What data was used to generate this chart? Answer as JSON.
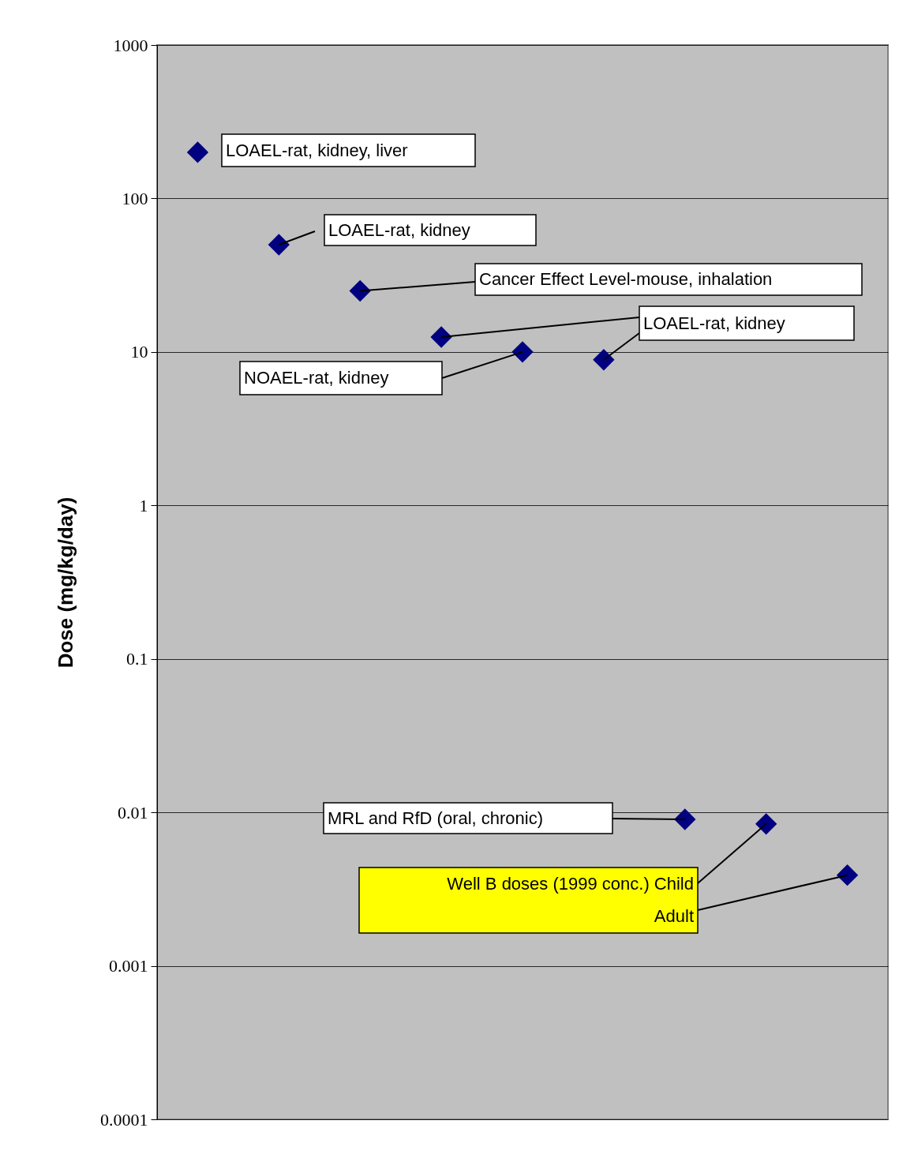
{
  "chart_data": {
    "type": "scatter",
    "ylabel": "Dose (mg/kg/day)",
    "categories": [
      null,
      null,
      null,
      null,
      null,
      null,
      null,
      null,
      null
    ],
    "series": [
      {
        "color": "#000080",
        "values": [
          200,
          50,
          25,
          12.5,
          10,
          8.9,
          0.009,
          0.0084,
          0.0039
        ]
      }
    ],
    "log": "y",
    "ylim": [
      0.0001,
      1000
    ],
    "yticks": [
      0.0001,
      0.001,
      0.01,
      0.1,
      1,
      10,
      100,
      1000
    ],
    "grid": "y",
    "marker": "diamond",
    "tick_labels": "y",
    "annotations": [
      "LOAEL-rat, kidney, liver",
      "LOAEL-rat, kidney",
      "Cancer Effect Level-mouse, inhalation",
      "LOAEL-rat, kidney",
      "NOAEL-rat, kidney",
      "MRL and RfD (oral, chronic)",
      "Well B doses (1999 conc.) Child\nAdult"
    ]
  }
}
